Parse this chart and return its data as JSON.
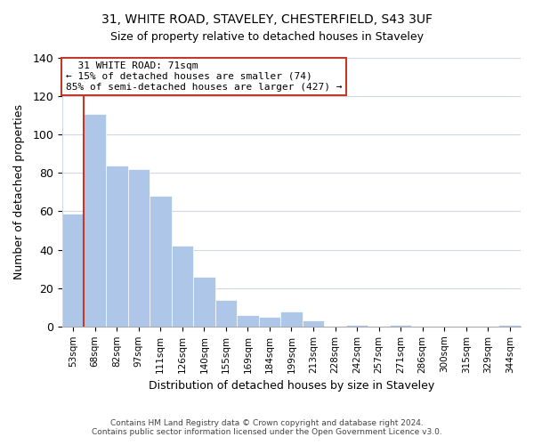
{
  "title": "31, WHITE ROAD, STAVELEY, CHESTERFIELD, S43 3UF",
  "subtitle": "Size of property relative to detached houses in Staveley",
  "xlabel": "Distribution of detached houses by size in Staveley",
  "ylabel": "Number of detached properties",
  "footer_line1": "Contains HM Land Registry data © Crown copyright and database right 2024.",
  "footer_line2": "Contains public sector information licensed under the Open Government Licence v3.0.",
  "bin_labels": [
    "53sqm",
    "68sqm",
    "82sqm",
    "97sqm",
    "111sqm",
    "126sqm",
    "140sqm",
    "155sqm",
    "169sqm",
    "184sqm",
    "199sqm",
    "213sqm",
    "228sqm",
    "242sqm",
    "257sqm",
    "271sqm",
    "286sqm",
    "300sqm",
    "315sqm",
    "329sqm",
    "344sqm"
  ],
  "bar_heights": [
    59,
    111,
    84,
    82,
    68,
    42,
    26,
    14,
    6,
    5,
    8,
    3,
    0,
    1,
    0,
    1,
    0,
    0,
    0,
    0,
    1
  ],
  "bar_color": "#aec6e8",
  "highlight_color": "#c0392b",
  "vline_bar_index": 1,
  "annotation_title": "31 WHITE ROAD: 71sqm",
  "annotation_line1": "← 15% of detached houses are smaller (74)",
  "annotation_line2": "85% of semi-detached houses are larger (427) →",
  "annotation_box_facecolor": "#ffffff",
  "annotation_box_edgecolor": "#c0392b",
  "ylim": [
    0,
    140
  ],
  "yticks": [
    0,
    20,
    40,
    60,
    80,
    100,
    120,
    140
  ],
  "grid_color": "#d0d8e8",
  "title_fontsize": 10,
  "subtitle_fontsize": 9
}
